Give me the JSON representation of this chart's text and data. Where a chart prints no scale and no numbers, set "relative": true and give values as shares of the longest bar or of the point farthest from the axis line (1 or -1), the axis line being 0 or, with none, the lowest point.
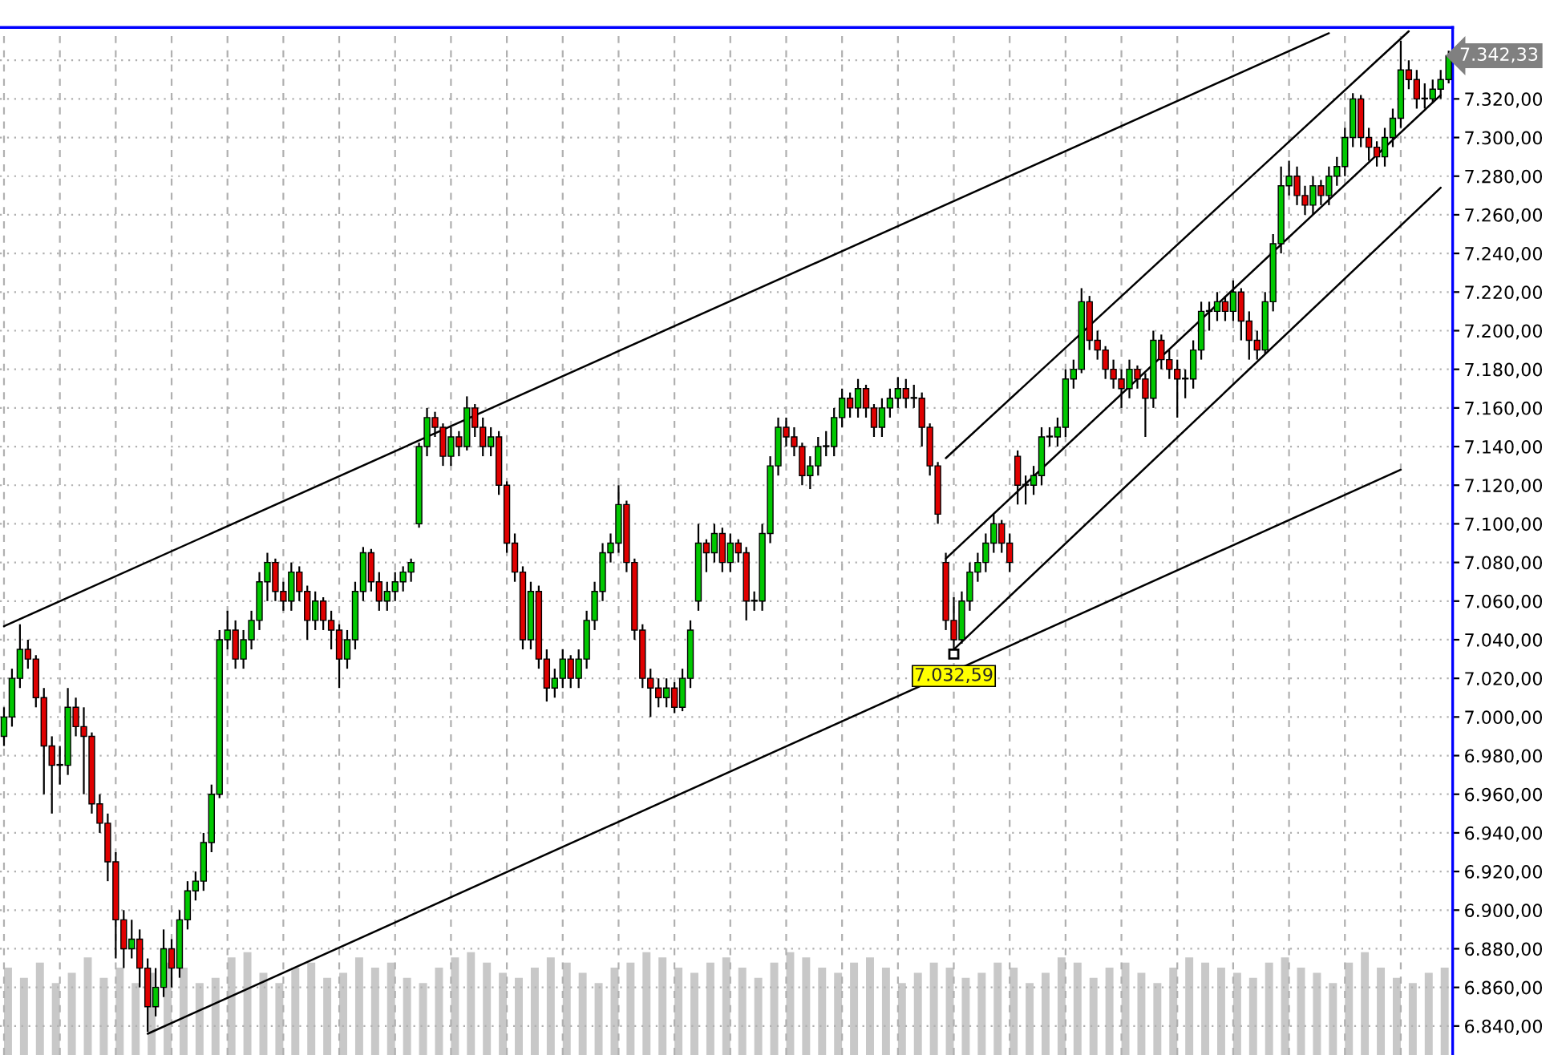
{
  "chart_data": [
    {
      "type": "candlestick",
      "categories": [
        null,
        null,
        null,
        null,
        null,
        null,
        null,
        null,
        null,
        null,
        null,
        null,
        null,
        null,
        null,
        null,
        null,
        null,
        null,
        null,
        null,
        null,
        null,
        null,
        null,
        null,
        null,
        null,
        null,
        null,
        null,
        null,
        null,
        null,
        null,
        null,
        null,
        null,
        null,
        null,
        null,
        null,
        null,
        null,
        null,
        null,
        null,
        null,
        null,
        null,
        null,
        null,
        null,
        null,
        null,
        null,
        null,
        null,
        null,
        null,
        null,
        null,
        null,
        null,
        null,
        null,
        null,
        null,
        null,
        null,
        null,
        null,
        null,
        null,
        null,
        null,
        null,
        null,
        null,
        null,
        null,
        null,
        null,
        null,
        null,
        null,
        null,
        null,
        null,
        null,
        null,
        null,
        null,
        null,
        null,
        null,
        null,
        null,
        null,
        null,
        null,
        null,
        null,
        null,
        null,
        null,
        null,
        null,
        null,
        null,
        null,
        null,
        null,
        null,
        null,
        null,
        null,
        null,
        null,
        null,
        null,
        null,
        null,
        null,
        null,
        null,
        null,
        null,
        null,
        null,
        null,
        null,
        null,
        null,
        null,
        null,
        null,
        null,
        null,
        null,
        null,
        null,
        null,
        null,
        null,
        null,
        null,
        null,
        null,
        null,
        null,
        null,
        null,
        null,
        null,
        null,
        null,
        null,
        null,
        null,
        null,
        null,
        null,
        null,
        null,
        null,
        null,
        null,
        null,
        null,
        null,
        null,
        null,
        null,
        null,
        null,
        null,
        null,
        null,
        null,
        null,
        null
      ],
      "ohlc": [
        [
          6990,
          7005,
          6985,
          7000
        ],
        [
          7000,
          7025,
          6995,
          7020
        ],
        [
          7020,
          7048,
          7015,
          7035
        ],
        [
          7035,
          7040,
          7025,
          7030
        ],
        [
          7030,
          7032,
          7005,
          7010
        ],
        [
          7010,
          7015,
          6960,
          6985
        ],
        [
          6985,
          6990,
          6950,
          6975
        ],
        [
          6975,
          6985,
          6965,
          6975
        ],
        [
          6975,
          7015,
          6970,
          7005
        ],
        [
          7005,
          7010,
          6990,
          6995
        ],
        [
          6995,
          7005,
          6960,
          6990
        ],
        [
          6990,
          6992,
          6950,
          6955
        ],
        [
          6955,
          6960,
          6940,
          6945
        ],
        [
          6945,
          6950,
          6915,
          6925
        ],
        [
          6925,
          6930,
          6875,
          6895
        ],
        [
          6895,
          6900,
          6870,
          6880
        ],
        [
          6880,
          6895,
          6875,
          6885
        ],
        [
          6885,
          6890,
          6860,
          6870
        ],
        [
          6870,
          6875,
          6837,
          6850
        ],
        [
          6850,
          6870,
          6845,
          6860
        ],
        [
          6860,
          6890,
          6855,
          6880
        ],
        [
          6880,
          6885,
          6860,
          6870
        ],
        [
          6870,
          6900,
          6865,
          6895
        ],
        [
          6895,
          6915,
          6890,
          6910
        ],
        [
          6910,
          6920,
          6905,
          6915
        ],
        [
          6915,
          6940,
          6910,
          6935
        ],
        [
          6935,
          6965,
          6930,
          6960
        ],
        [
          6960,
          7045,
          6958,
          7040
        ],
        [
          7040,
          7055,
          7035,
          7045
        ],
        [
          7045,
          7050,
          7025,
          7030
        ],
        [
          7030,
          7045,
          7025,
          7040
        ],
        [
          7040,
          7055,
          7035,
          7050
        ],
        [
          7050,
          7075,
          7045,
          7070
        ],
        [
          7070,
          7085,
          7060,
          7080
        ],
        [
          7080,
          7082,
          7060,
          7065
        ],
        [
          7065,
          7070,
          7055,
          7060
        ],
        [
          7060,
          7080,
          7055,
          7075
        ],
        [
          7075,
          7078,
          7060,
          7065
        ],
        [
          7065,
          7068,
          7040,
          7050
        ],
        [
          7050,
          7065,
          7045,
          7060
        ],
        [
          7060,
          7062,
          7045,
          7050
        ],
        [
          7050,
          7055,
          7035,
          7045
        ],
        [
          7045,
          7048,
          7015,
          7030
        ],
        [
          7030,
          7045,
          7025,
          7040
        ],
        [
          7040,
          7070,
          7035,
          7065
        ],
        [
          7065,
          7088,
          7060,
          7085
        ],
        [
          7085,
          7087,
          7065,
          7070
        ],
        [
          7070,
          7075,
          7055,
          7060
        ],
        [
          7060,
          7070,
          7055,
          7065
        ],
        [
          7065,
          7075,
          7060,
          7070
        ],
        [
          7070,
          7078,
          7065,
          7075
        ],
        [
          7075,
          7082,
          7070,
          7080
        ],
        [
          7100,
          7142,
          7098,
          7140
        ],
        [
          7140,
          7160,
          7135,
          7155
        ],
        [
          7155,
          7158,
          7145,
          7150
        ],
        [
          7150,
          7152,
          7130,
          7135
        ],
        [
          7135,
          7150,
          7130,
          7145
        ],
        [
          7145,
          7148,
          7135,
          7140
        ],
        [
          7140,
          7166,
          7138,
          7160
        ],
        [
          7160,
          7162,
          7145,
          7150
        ],
        [
          7150,
          7155,
          7135,
          7140
        ],
        [
          7140,
          7150,
          7135,
          7145
        ],
        [
          7145,
          7148,
          7115,
          7120
        ],
        [
          7120,
          7122,
          7085,
          7090
        ],
        [
          7090,
          7095,
          7070,
          7075
        ],
        [
          7075,
          7078,
          7035,
          7040
        ],
        [
          7040,
          7070,
          7035,
          7065
        ],
        [
          7065,
          7068,
          7025,
          7030
        ],
        [
          7030,
          7035,
          7008,
          7015
        ],
        [
          7015,
          7025,
          7010,
          7020
        ],
        [
          7020,
          7035,
          7015,
          7030
        ],
        [
          7030,
          7032,
          7015,
          7020
        ],
        [
          7020,
          7035,
          7015,
          7030
        ],
        [
          7030,
          7055,
          7025,
          7050
        ],
        [
          7050,
          7070,
          7045,
          7065
        ],
        [
          7065,
          7090,
          7060,
          7085
        ],
        [
          7085,
          7095,
          7080,
          7090
        ],
        [
          7090,
          7120,
          7085,
          7110
        ],
        [
          7110,
          7112,
          7075,
          7080
        ],
        [
          7080,
          7082,
          7040,
          7045
        ],
        [
          7045,
          7048,
          7015,
          7020
        ],
        [
          7020,
          7025,
          7000,
          7015
        ],
        [
          7015,
          7020,
          7005,
          7010
        ],
        [
          7010,
          7020,
          7005,
          7015
        ],
        [
          7015,
          7018,
          7002,
          7005
        ],
        [
          7005,
          7025,
          7003,
          7020
        ],
        [
          7020,
          7050,
          7015,
          7045
        ],
        [
          7060,
          7100,
          7055,
          7090
        ],
        [
          7090,
          7092,
          7075,
          7085
        ],
        [
          7085,
          7100,
          7080,
          7095
        ],
        [
          7095,
          7098,
          7075,
          7080
        ],
        [
          7080,
          7095,
          7075,
          7090
        ],
        [
          7090,
          7092,
          7080,
          7085
        ],
        [
          7085,
          7088,
          7050,
          7060
        ],
        [
          7060,
          7065,
          7055,
          7060
        ],
        [
          7060,
          7100,
          7055,
          7095
        ],
        [
          7095,
          7135,
          7090,
          7130
        ],
        [
          7130,
          7155,
          7125,
          7150
        ],
        [
          7150,
          7155,
          7140,
          7145
        ],
        [
          7145,
          7150,
          7135,
          7140
        ],
        [
          7140,
          7142,
          7120,
          7125
        ],
        [
          7125,
          7135,
          7118,
          7130
        ],
        [
          7130,
          7145,
          7125,
          7140
        ],
        [
          7140,
          7148,
          7135,
          7140
        ],
        [
          7140,
          7160,
          7135,
          7155
        ],
        [
          7155,
          7170,
          7150,
          7165
        ],
        [
          7165,
          7168,
          7155,
          7160
        ],
        [
          7160,
          7175,
          7155,
          7170
        ],
        [
          7170,
          7172,
          7155,
          7160
        ],
        [
          7160,
          7162,
          7145,
          7150
        ],
        [
          7150,
          7165,
          7145,
          7160
        ],
        [
          7160,
          7170,
          7155,
          7165
        ],
        [
          7165,
          7176,
          7160,
          7170
        ],
        [
          7170,
          7175,
          7160,
          7165
        ],
        [
          7165,
          7172,
          7160,
          7165
        ],
        [
          7165,
          7168,
          7140,
          7150
        ],
        [
          7150,
          7152,
          7125,
          7130
        ],
        [
          7130,
          7132,
          7100,
          7105
        ],
        [
          7080,
          7085,
          7045,
          7050
        ],
        [
          7050,
          7062,
          7032.59,
          7040
        ],
        [
          7040,
          7065,
          7038,
          7060
        ],
        [
          7060,
          7080,
          7055,
          7075
        ],
        [
          7075,
          7085,
          7070,
          7080
        ],
        [
          7080,
          7095,
          7075,
          7090
        ],
        [
          7090,
          7105,
          7085,
          7100
        ],
        [
          7100,
          7102,
          7085,
          7090
        ],
        [
          7090,
          7095,
          7075,
          7080
        ],
        [
          7135,
          7138,
          7110,
          7120
        ],
        [
          7120,
          7125,
          7110,
          7120
        ],
        [
          7120,
          7130,
          7115,
          7125
        ],
        [
          7125,
          7150,
          7120,
          7145
        ],
        [
          7145,
          7150,
          7140,
          7145
        ],
        [
          7145,
          7155,
          7140,
          7150
        ],
        [
          7150,
          7180,
          7145,
          7175
        ],
        [
          7175,
          7185,
          7170,
          7180
        ],
        [
          7180,
          7222,
          7178,
          7215
        ],
        [
          7215,
          7218,
          7190,
          7195
        ],
        [
          7195,
          7200,
          7185,
          7190
        ],
        [
          7190,
          7192,
          7175,
          7180
        ],
        [
          7180,
          7185,
          7170,
          7175
        ],
        [
          7175,
          7180,
          7160,
          7170
        ],
        [
          7170,
          7185,
          7165,
          7180
        ],
        [
          7180,
          7182,
          7170,
          7175
        ],
        [
          7175,
          7178,
          7145,
          7165
        ],
        [
          7165,
          7200,
          7160,
          7195
        ],
        [
          7195,
          7198,
          7180,
          7185
        ],
        [
          7185,
          7190,
          7175,
          7180
        ],
        [
          7180,
          7185,
          7155,
          7175
        ],
        [
          7175,
          7180,
          7165,
          7175
        ],
        [
          7175,
          7195,
          7170,
          7190
        ],
        [
          7190,
          7215,
          7185,
          7210
        ],
        [
          7210,
          7215,
          7200,
          7210
        ],
        [
          7210,
          7220,
          7205,
          7215
        ],
        [
          7215,
          7218,
          7205,
          7210
        ],
        [
          7210,
          7226,
          7205,
          7220
        ],
        [
          7220,
          7222,
          7195,
          7205
        ],
        [
          7205,
          7210,
          7185,
          7195
        ],
        [
          7195,
          7200,
          7185,
          7190
        ],
        [
          7190,
          7220,
          7188,
          7215
        ],
        [
          7215,
          7250,
          7210,
          7245
        ],
        [
          7245,
          7285,
          7240,
          7275
        ],
        [
          7275,
          7288,
          7270,
          7280
        ],
        [
          7280,
          7285,
          7265,
          7270
        ],
        [
          7270,
          7275,
          7260,
          7265
        ],
        [
          7265,
          7280,
          7260,
          7275
        ],
        [
          7275,
          7278,
          7265,
          7270
        ],
        [
          7270,
          7285,
          7265,
          7280
        ],
        [
          7280,
          7290,
          7275,
          7285
        ],
        [
          7285,
          7305,
          7280,
          7300
        ],
        [
          7300,
          7323,
          7295,
          7320
        ],
        [
          7320,
          7322,
          7295,
          7300
        ],
        [
          7300,
          7305,
          7288,
          7295
        ],
        [
          7295,
          7298,
          7285,
          7290
        ],
        [
          7290,
          7305,
          7285,
          7300
        ],
        [
          7300,
          7315,
          7295,
          7310
        ],
        [
          7310,
          7350,
          7305,
          7335
        ],
        [
          7335,
          7340,
          7325,
          7330
        ],
        [
          7330,
          7335,
          7315,
          7320
        ],
        [
          7320,
          7328,
          7315,
          7320
        ],
        [
          7320,
          7330,
          7318,
          7325
        ],
        [
          7325,
          7335,
          7320,
          7330
        ],
        [
          7330,
          7345,
          7328,
          7342.33
        ]
      ],
      "series": [
        {
          "type": "line",
          "color": "#000000",
          "values": [
            7047,
            null,
            null,
            null,
            null,
            null,
            null,
            null,
            null,
            null,
            null,
            null,
            null,
            null,
            null,
            null,
            null,
            null,
            null,
            null,
            null,
            null,
            null,
            null,
            null,
            null,
            null,
            null,
            null,
            null,
            null,
            null,
            null,
            null,
            null,
            null,
            null,
            null,
            null,
            null,
            null,
            null,
            null,
            null,
            null,
            null,
            null,
            null,
            null,
            null,
            null,
            null,
            null,
            null,
            null,
            null,
            null,
            null,
            null,
            null,
            null,
            null,
            null,
            null,
            null,
            null,
            null,
            null,
            null,
            null,
            null,
            null,
            null,
            null,
            null,
            null,
            null,
            null,
            null,
            null,
            null,
            null,
            null,
            null,
            null,
            null,
            null,
            null,
            null,
            null,
            null,
            null,
            null,
            null,
            null,
            null,
            null,
            null,
            null,
            null,
            null,
            null,
            null,
            null,
            null,
            null,
            null,
            null,
            null,
            null,
            null,
            null,
            null,
            null,
            null,
            null,
            null,
            null,
            null,
            null,
            null,
            null,
            null,
            null,
            null,
            null,
            null,
            null,
            null,
            null,
            null,
            null,
            null,
            null,
            null,
            null,
            null,
            null,
            null,
            null,
            null,
            null,
            null,
            null,
            null,
            null,
            null,
            null,
            null,
            null,
            null,
            null,
            null,
            null,
            null,
            null,
            null,
            null,
            null,
            null,
            null,
            null,
            null,
            null,
            null,
            null,
            7354,
            null,
            null,
            null,
            null,
            null,
            null,
            null,
            null,
            null,
            null,
            null,
            null,
            null,
            null,
            null
          ]
        },
        {
          "type": "line",
          "color": "#000000",
          "values": [
            null,
            null,
            null,
            null,
            null,
            null,
            null,
            null,
            null,
            null,
            null,
            null,
            null,
            null,
            null,
            null,
            null,
            null,
            6836,
            null,
            null,
            null,
            null,
            null,
            null,
            null,
            null,
            null,
            null,
            null,
            null,
            null,
            null,
            null,
            null,
            null,
            null,
            null,
            null,
            null,
            null,
            null,
            null,
            null,
            null,
            null,
            null,
            null,
            null,
            null,
            null,
            null,
            null,
            null,
            null,
            null,
            null,
            null,
            null,
            null,
            null,
            null,
            null,
            null,
            null,
            null,
            null,
            null,
            null,
            null,
            null,
            null,
            null,
            null,
            null,
            null,
            null,
            null,
            null,
            null,
            null,
            null,
            null,
            null,
            null,
            null,
            null,
            null,
            null,
            null,
            null,
            null,
            null,
            null,
            null,
            null,
            null,
            null,
            null,
            null,
            null,
            null,
            null,
            null,
            null,
            null,
            null,
            null,
            null,
            null,
            null,
            null,
            null,
            null,
            null,
            null,
            null,
            null,
            null,
            null,
            null,
            null,
            null,
            null,
            null,
            null,
            null,
            null,
            null,
            null,
            null,
            null,
            null,
            null,
            null,
            null,
            null,
            null,
            null,
            null,
            null,
            null,
            null,
            null,
            null,
            null,
            null,
            null,
            null,
            null,
            null,
            null,
            null,
            null,
            null,
            null,
            null,
            null,
            null,
            null,
            null,
            null,
            null,
            null,
            null,
            null,
            null,
            null,
            null,
            null,
            null,
            null,
            null,
            null,
            null,
            7128,
            null,
            null,
            null,
            null,
            null,
            null
          ]
        },
        {
          "type": "line",
          "color": "#000000",
          "values": [
            null,
            null,
            null,
            null,
            null,
            null,
            null,
            null,
            null,
            null,
            null,
            null,
            null,
            null,
            null,
            null,
            null,
            null,
            null,
            null,
            null,
            null,
            null,
            null,
            null,
            null,
            null,
            null,
            null,
            null,
            null,
            null,
            null,
            null,
            null,
            null,
            null,
            null,
            null,
            null,
            null,
            null,
            null,
            null,
            null,
            null,
            null,
            null,
            null,
            null,
            null,
            null,
            null,
            null,
            null,
            null,
            null,
            null,
            null,
            null,
            null,
            null,
            null,
            null,
            null,
            null,
            null,
            null,
            null,
            null,
            null,
            null,
            null,
            null,
            null,
            null,
            null,
            null,
            null,
            null,
            null,
            null,
            null,
            null,
            null,
            null,
            null,
            null,
            null,
            null,
            null,
            null,
            null,
            null,
            null,
            null,
            null,
            null,
            null,
            null,
            null,
            null,
            null,
            null,
            null,
            null,
            null,
            null,
            null,
            null,
            null,
            null,
            null,
            null,
            null,
            null,
            null,
            null,
            7134,
            null,
            null,
            null,
            null,
            null,
            null,
            null,
            null,
            null,
            null,
            null,
            null,
            null,
            null,
            null,
            null,
            null,
            null,
            null,
            null,
            null,
            null,
            null,
            null,
            null,
            null,
            null,
            null,
            null,
            null,
            null,
            null,
            null,
            null,
            null,
            null,
            null,
            null,
            null,
            null,
            null,
            null,
            null,
            null,
            null,
            null,
            null,
            null,
            null,
            null,
            null,
            null,
            null,
            null,
            null,
            null,
            null,
            7355,
            null,
            null,
            null,
            null,
            null
          ]
        },
        {
          "type": "line",
          "color": "#000000",
          "values": [
            null,
            null,
            null,
            null,
            null,
            null,
            null,
            null,
            null,
            null,
            null,
            null,
            null,
            null,
            null,
            null,
            null,
            null,
            null,
            null,
            null,
            null,
            null,
            null,
            null,
            null,
            null,
            null,
            null,
            null,
            null,
            null,
            null,
            null,
            null,
            null,
            null,
            null,
            null,
            null,
            null,
            null,
            null,
            null,
            null,
            null,
            null,
            null,
            null,
            null,
            null,
            null,
            null,
            null,
            null,
            null,
            null,
            null,
            null,
            null,
            null,
            null,
            null,
            null,
            null,
            null,
            null,
            null,
            null,
            null,
            null,
            null,
            null,
            null,
            null,
            null,
            null,
            null,
            null,
            null,
            null,
            null,
            null,
            null,
            null,
            null,
            null,
            null,
            null,
            null,
            null,
            null,
            null,
            null,
            null,
            null,
            null,
            null,
            null,
            null,
            null,
            null,
            null,
            null,
            null,
            null,
            null,
            null,
            null,
            null,
            null,
            null,
            null,
            null,
            null,
            null,
            null,
            null,
            7082,
            null,
            null,
            null,
            null,
            null,
            null,
            null,
            null,
            null,
            null,
            null,
            null,
            null,
            null,
            null,
            null,
            null,
            null,
            null,
            null,
            null,
            null,
            null,
            null,
            null,
            null,
            null,
            null,
            null,
            null,
            null,
            null,
            null,
            null,
            null,
            null,
            null,
            null,
            null,
            null,
            null,
            null,
            null,
            null,
            null,
            null,
            null,
            null,
            null,
            null,
            null,
            null,
            null,
            null,
            null,
            null,
            null,
            null,
            null,
            null,
            null,
            7322,
            null
          ]
        },
        {
          "type": "line",
          "color": "#000000",
          "values": [
            null,
            null,
            null,
            null,
            null,
            null,
            null,
            null,
            null,
            null,
            null,
            null,
            null,
            null,
            null,
            null,
            null,
            null,
            null,
            null,
            null,
            null,
            null,
            null,
            null,
            null,
            null,
            null,
            null,
            null,
            null,
            null,
            null,
            null,
            null,
            null,
            null,
            null,
            null,
            null,
            null,
            null,
            null,
            null,
            null,
            null,
            null,
            null,
            null,
            null,
            null,
            null,
            null,
            null,
            null,
            null,
            null,
            null,
            null,
            null,
            null,
            null,
            null,
            null,
            null,
            null,
            null,
            null,
            null,
            null,
            null,
            null,
            null,
            null,
            null,
            null,
            null,
            null,
            null,
            null,
            null,
            null,
            null,
            null,
            null,
            null,
            null,
            null,
            null,
            null,
            null,
            null,
            null,
            null,
            null,
            null,
            null,
            null,
            null,
            null,
            null,
            null,
            null,
            null,
            null,
            null,
            null,
            null,
            null,
            null,
            null,
            null,
            null,
            null,
            null,
            null,
            null,
            null,
            null,
            7035,
            null,
            null,
            null,
            null,
            null,
            null,
            null,
            null,
            null,
            null,
            null,
            null,
            null,
            null,
            null,
            null,
            null,
            null,
            null,
            null,
            null,
            null,
            null,
            null,
            null,
            null,
            null,
            null,
            null,
            null,
            null,
            null,
            null,
            null,
            null,
            null,
            null,
            null,
            null,
            null,
            null,
            null,
            null,
            null,
            null,
            null,
            null,
            null,
            null,
            null,
            null,
            null,
            null,
            null,
            null,
            null,
            null,
            null,
            null,
            null,
            7274,
            null
          ]
        }
      ],
      "ylim": [
        6825,
        7357
      ],
      "yticks": [
        {
          "value": 6840,
          "label": "6.840,00"
        },
        {
          "value": 6860,
          "label": "6.860,00"
        },
        {
          "value": 6880,
          "label": "6.880,00"
        },
        {
          "value": 6900,
          "label": "6.900,00"
        },
        {
          "value": 6920,
          "label": "6.920,00"
        },
        {
          "value": 6940,
          "label": "6.940,00"
        },
        {
          "value": 6960,
          "label": "6.960,00"
        },
        {
          "value": 6980,
          "label": "6.980,00"
        },
        {
          "value": 7000,
          "label": "7.000,00"
        },
        {
          "value": 7020,
          "label": "7.020,00"
        },
        {
          "value": 7040,
          "label": "7.040,00"
        },
        {
          "value": 7060,
          "label": "7.060,00"
        },
        {
          "value": 7080,
          "label": "7.080,00"
        },
        {
          "value": 7100,
          "label": "7.100,00"
        },
        {
          "value": 7120,
          "label": "7.120,00"
        },
        {
          "value": 7140,
          "label": "7.140,00"
        },
        {
          "value": 7160,
          "label": "7.160,00"
        },
        {
          "value": 7180,
          "label": "7.180,00"
        },
        {
          "value": 7200,
          "label": "7.200,00"
        },
        {
          "value": 7220,
          "label": "7.220,00"
        },
        {
          "value": 7240,
          "label": "7.240,00"
        },
        {
          "value": 7260,
          "label": "7.260,00"
        },
        {
          "value": 7280,
          "label": "7.280,00"
        },
        {
          "value": 7300,
          "label": "7.300,00"
        },
        {
          "value": 7320,
          "label": "7.320,00"
        },
        {
          "value": 7340,
          "label": null
        }
      ],
      "annotations": [
        {
          "text": "7.032,59",
          "y": 7032.59
        },
        "7.342,33"
      ],
      "grid": true,
      "tick_labels": "y"
    },
    {
      "type": "bar",
      "relative": true,
      "color": "#c8c8c8",
      "categories": [
        null,
        null,
        null,
        null,
        null,
        null,
        null,
        null,
        null,
        null,
        null,
        null,
        null,
        null,
        null,
        null,
        null,
        null,
        null,
        null,
        null,
        null,
        null,
        null,
        null,
        null,
        null,
        null,
        null,
        null,
        null,
        null,
        null,
        null,
        null,
        null,
        null,
        null,
        null,
        null,
        null,
        null,
        null,
        null,
        null,
        null,
        null,
        null,
        null,
        null,
        null,
        null,
        null,
        null,
        null,
        null,
        null,
        null,
        null,
        null,
        null,
        null,
        null,
        null,
        null,
        null,
        null,
        null,
        null,
        null,
        null,
        null,
        null,
        null,
        null,
        null,
        null,
        null,
        null,
        null,
        null,
        null,
        null,
        null,
        null,
        null,
        null,
        null,
        null,
        null,
        null
      ],
      "values": [
        0.85,
        0.75,
        0.9,
        0.7,
        0.8,
        0.95,
        0.75,
        0.85,
        0.7,
        0.8,
        0.9,
        0.85,
        0.7,
        0.75,
        0.95,
        1.0,
        0.8,
        0.7,
        0.85,
        0.9,
        0.75,
        0.8,
        0.95,
        0.85,
        0.9,
        0.75,
        0.7,
        0.85,
        0.95,
        1.0,
        0.9,
        0.8,
        0.75,
        0.85,
        0.95,
        0.9,
        0.8,
        0.7,
        0.85,
        0.9,
        1.0,
        0.95,
        0.85,
        0.8,
        0.9,
        0.95,
        0.85,
        0.75,
        0.9,
        1.0,
        0.95,
        0.85,
        0.8,
        0.9,
        0.95,
        0.85,
        0.7,
        0.8,
        0.9,
        0.85,
        0.75,
        0.8,
        0.9,
        0.85,
        0.7,
        0.8,
        0.95,
        0.9,
        0.75,
        0.85,
        0.9,
        0.8,
        0.7,
        0.85,
        0.95,
        0.9,
        0.85,
        0.8,
        0.75,
        0.9,
        0.95,
        0.85,
        0.8,
        0.7,
        0.9,
        1.0,
        0.85,
        0.75,
        0.7,
        0.8,
        0.85
      ]
    }
  ]
}
